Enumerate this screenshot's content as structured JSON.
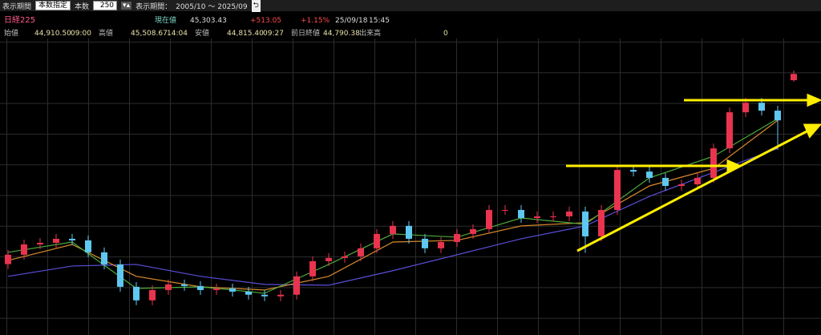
{
  "toolbar": {
    "period_label": "表示期間",
    "mode": "本数指定",
    "count_label": "本数",
    "count": "250",
    "range_label": "表示期間：",
    "range": "2005/10 〜 2025/09"
  },
  "quote": {
    "name": "日経225",
    "current_label": "現在値",
    "current": "45,303.43",
    "change": "+513.05",
    "change_pct": "+1.15%",
    "date": "25/09/18",
    "time": "15:45",
    "open_label": "始値",
    "open": "44,910.50",
    "open_time": "09:00",
    "high_label": "高値",
    "high": "45,508.67",
    "high_time": "14:04",
    "low_label": "安値",
    "low": "44,815.40",
    "low_time": "09:27",
    "prev_label": "前日終値",
    "prev": "44,790.38",
    "volume_label": "出来高",
    "volume": "0"
  },
  "chart_data": {
    "type": "candlestick",
    "ylim": [
      29100,
      47500
    ],
    "up_color": "#e8344e",
    "down_color": "#5ec8f0",
    "open": [
      33500,
      34080,
      34720,
      34820,
      35070,
      34970,
      34230,
      33480,
      32090,
      31250,
      31890,
      32240,
      32140,
      31890,
      31990,
      31790,
      31600,
      31500,
      31600,
      32740,
      33680,
      33880,
      33980,
      34480,
      35370,
      35870,
      35070,
      34480,
      34870,
      35370,
      35670,
      36860,
      36860,
      36360,
      36460,
      36460,
      36760,
      35220,
      36860,
      39340,
      39240,
      38850,
      38350,
      38450,
      38850,
      40680,
      42920,
      43510,
      43020,
      44910
    ],
    "high": [
      34380,
      35020,
      35120,
      35370,
      35370,
      35270,
      34530,
      33780,
      32390,
      32190,
      32540,
      32540,
      32440,
      32290,
      32290,
      32090,
      31900,
      31900,
      33040,
      33980,
      34180,
      34280,
      34780,
      35670,
      36170,
      36170,
      35370,
      35170,
      35670,
      35970,
      37160,
      37160,
      37160,
      36760,
      36760,
      37060,
      37060,
      37160,
      39640,
      39640,
      39540,
      39150,
      38750,
      39150,
      40980,
      43220,
      43810,
      43810,
      43320,
      45510
    ],
    "low": [
      33200,
      33780,
      34420,
      34520,
      34670,
      33930,
      33180,
      31790,
      30950,
      30950,
      31590,
      31840,
      31590,
      31590,
      31490,
      31300,
      31200,
      31200,
      31300,
      32440,
      33380,
      33580,
      33680,
      34180,
      35070,
      34770,
      34180,
      34180,
      34570,
      35070,
      35370,
      36560,
      36060,
      36060,
      36160,
      36160,
      34200,
      34920,
      36560,
      38940,
      38550,
      38050,
      38050,
      38150,
      38550,
      40380,
      42620,
      42720,
      40600,
      44820
    ],
    "close": [
      34080,
      34720,
      34820,
      35070,
      34970,
      34230,
      33480,
      32090,
      31250,
      31890,
      32240,
      32140,
      31890,
      31990,
      31790,
      31600,
      31500,
      31600,
      32740,
      33680,
      33880,
      33980,
      34480,
      35370,
      35870,
      35070,
      34480,
      34870,
      35370,
      35670,
      36860,
      36860,
      36360,
      36460,
      36460,
      36760,
      35220,
      36860,
      39340,
      39240,
      38850,
      38350,
      38450,
      38850,
      40680,
      42920,
      43510,
      43020,
      42420,
      45300
    ],
    "moving_averages": [
      {
        "color": "#5a4fd8",
        "x": [
          0,
          4,
          8,
          12,
          16,
          20,
          24,
          28,
          32,
          36,
          40,
          44,
          48
        ],
        "values": [
          32740,
          33380,
          33480,
          32740,
          32240,
          32190,
          33090,
          34080,
          35070,
          35870,
          37700,
          39190,
          40680
        ]
      },
      {
        "color": "#d88a2c",
        "x": [
          0,
          4,
          8,
          12,
          16,
          20,
          24,
          28,
          32,
          36,
          40,
          44,
          48
        ],
        "values": [
          33730,
          34720,
          32740,
          32090,
          31890,
          32740,
          34870,
          34970,
          35870,
          36070,
          38350,
          39440,
          42420
        ]
      },
      {
        "color": "#4caa3c",
        "x": [
          0,
          4,
          8,
          12,
          16,
          20,
          24,
          28,
          32,
          36,
          40,
          44,
          48
        ],
        "values": [
          34230,
          34870,
          31990,
          32090,
          31690,
          33480,
          35370,
          35170,
          36360,
          35970,
          38850,
          40190,
          42520
        ]
      }
    ]
  }
}
